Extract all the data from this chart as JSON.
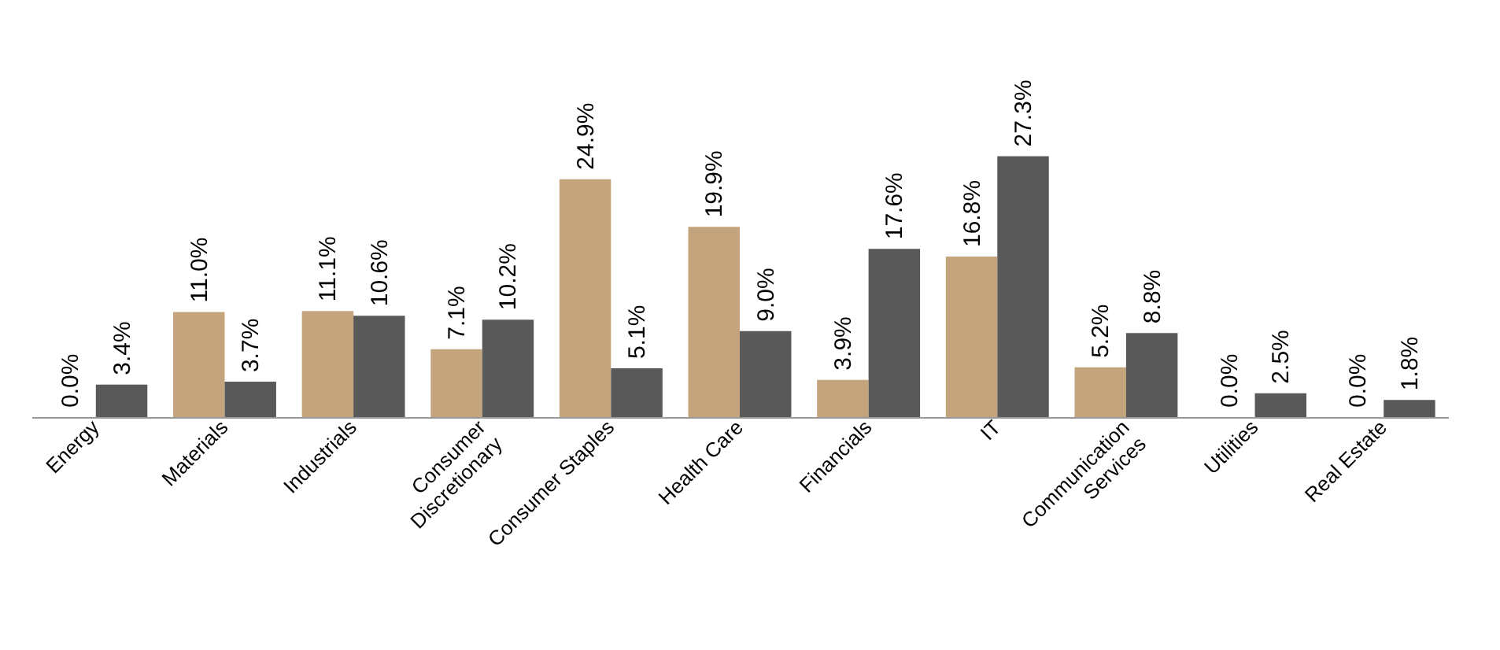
{
  "chart_data": {
    "type": "bar",
    "categories": [
      "Energy",
      "Materials",
      "Industrials",
      "Consumer Discretionary",
      "Consumer Staples",
      "Health Care",
      "Financials",
      "IT",
      "Communication Services",
      "Utilities",
      "Real Estate"
    ],
    "series": [
      {
        "color": "#c4a47c",
        "values": [
          0.0,
          11.0,
          11.1,
          7.1,
          24.9,
          19.9,
          3.9,
          16.8,
          5.2,
          0.0,
          0.0
        ],
        "value_labels": [
          "0.0%",
          "11.0%",
          "11.1%",
          "7.1%",
          "24.9%",
          "19.9%",
          "3.9%",
          "16.8%",
          "5.2%",
          "0.0%",
          "0.0%"
        ]
      },
      {
        "color": "#595959",
        "values": [
          3.4,
          3.7,
          10.6,
          10.2,
          5.1,
          9.0,
          17.6,
          27.3,
          8.8,
          2.5,
          1.8
        ],
        "value_labels": [
          "3.4%",
          "3.7%",
          "10.6%",
          "10.2%",
          "5.1%",
          "9.0%",
          "17.6%",
          "27.3%",
          "8.8%",
          "2.5%",
          "1.8%"
        ]
      }
    ],
    "grid": false,
    "legend": false
  }
}
